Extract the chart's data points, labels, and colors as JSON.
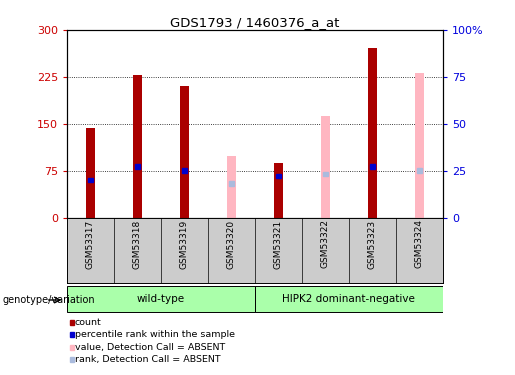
{
  "title": "GDS1793 / 1460376_a_at",
  "samples": [
    "GSM53317",
    "GSM53318",
    "GSM53319",
    "GSM53320",
    "GSM53321",
    "GSM53322",
    "GSM53323",
    "GSM53324"
  ],
  "bar_data": [
    {
      "sample": "GSM53317",
      "type": "present",
      "count": 144,
      "rank": 20
    },
    {
      "sample": "GSM53318",
      "type": "present",
      "count": 228,
      "rank": 27
    },
    {
      "sample": "GSM53319",
      "type": "present",
      "count": 210,
      "rank": 25
    },
    {
      "sample": "GSM53320",
      "type": "absent",
      "value_absent": 98,
      "rank_absent": 18
    },
    {
      "sample": "GSM53321",
      "type": "present",
      "count": 88,
      "rank": 22
    },
    {
      "sample": "GSM53322",
      "type": "absent",
      "value_absent": 163,
      "rank_absent": 23
    },
    {
      "sample": "GSM53323",
      "type": "present",
      "count": 272,
      "rank": 27
    },
    {
      "sample": "GSM53324",
      "type": "absent",
      "value_absent": 232,
      "rank_absent": 25
    }
  ],
  "ylim_left": [
    0,
    300
  ],
  "ylim_right": [
    0,
    100
  ],
  "yticks_left": [
    0,
    75,
    150,
    225,
    300
  ],
  "yticks_right": [
    0,
    25,
    50,
    75,
    100
  ],
  "color_present_bar": "#aa0000",
  "color_present_rank": "#0000cc",
  "color_absent_bar": "#ffb6c1",
  "color_absent_rank": "#aabbdd",
  "background_color": "#ffffff",
  "grid_dotted_vals": [
    75,
    150,
    225
  ],
  "right_axis_color": "#0000dd",
  "left_axis_color": "#cc0000",
  "tick_area_color": "#cccccc",
  "group_label_text": "genotype/variation",
  "groups": [
    {
      "label": "wild-type",
      "color": "#aaffaa",
      "start": 0,
      "end": 3
    },
    {
      "label": "HIPK2 dominant-negative",
      "color": "#aaffaa",
      "start": 4,
      "end": 7
    }
  ],
  "legend_items": [
    {
      "label": "count",
      "color": "#aa0000"
    },
    {
      "label": "percentile rank within the sample",
      "color": "#0000cc"
    },
    {
      "label": "value, Detection Call = ABSENT",
      "color": "#ffb6c1"
    },
    {
      "label": "rank, Detection Call = ABSENT",
      "color": "#aabbdd"
    }
  ]
}
